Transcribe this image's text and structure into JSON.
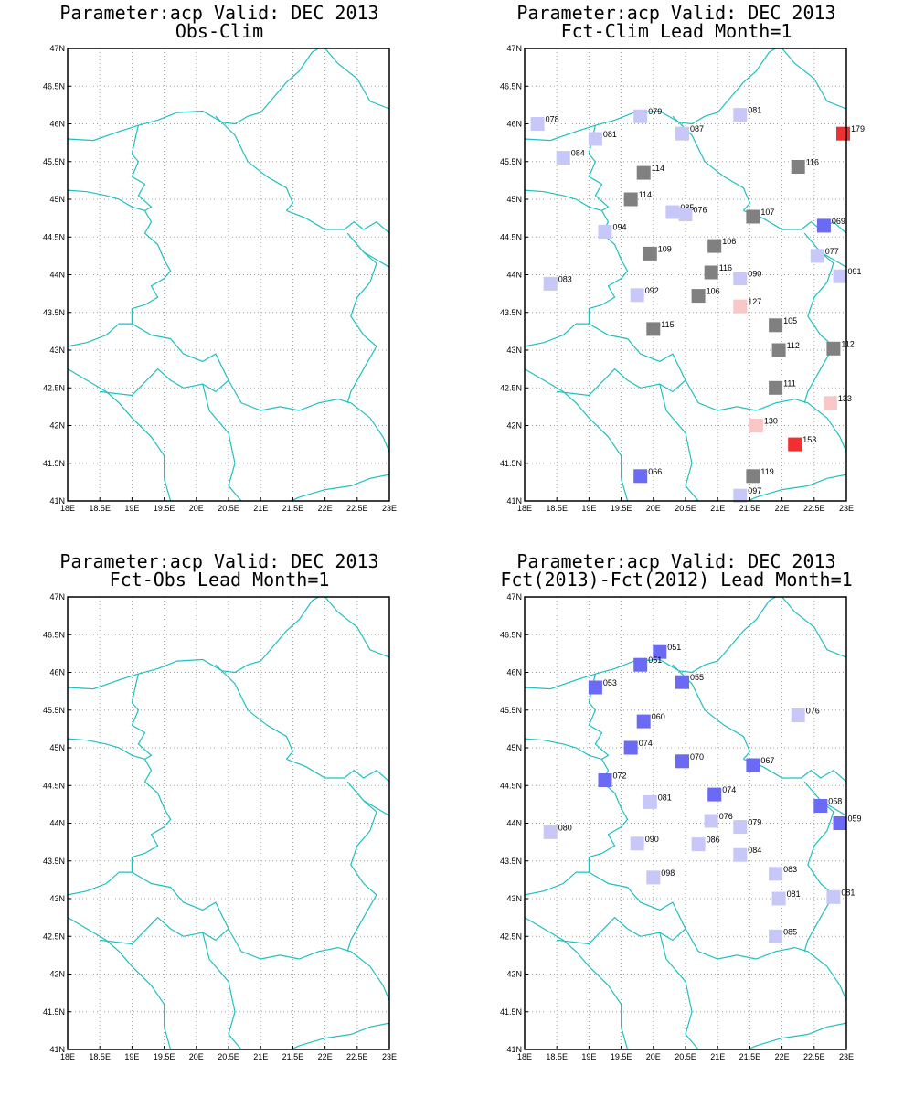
{
  "axes": {
    "x_ticks": [
      "18E",
      "18.5E",
      "19E",
      "19.5E",
      "20E",
      "20.5E",
      "21E",
      "21.5E",
      "22E",
      "22.5E",
      "23E"
    ],
    "y_ticks": [
      "41N",
      "41.5N",
      "42N",
      "42.5N",
      "43N",
      "43.5N",
      "44N",
      "44.5N",
      "45N",
      "45.5N",
      "46N",
      "46.5N",
      "47N"
    ],
    "xlim": [
      18,
      23
    ],
    "ylim": [
      41,
      47
    ],
    "grid": true
  },
  "colors": {
    "border": "#20c0c0",
    "grid": "#a0a0a0",
    "frame": "#000000",
    "classes": {
      "deep_blue": "#6a6af5",
      "light_blue": "#c8c8f8",
      "gray": "#808080",
      "pink": "#f8c8c8",
      "red": "#f03030"
    }
  },
  "panels": [
    {
      "title": "Parameter:acp Valid: DEC 2013",
      "subtitle": "Obs-Clim",
      "stations": []
    },
    {
      "title": "Parameter:acp Valid: DEC 2013",
      "subtitle": "Fct-Clim Lead Month=1",
      "stations": [
        {
          "lon": 18.2,
          "lat": 46.0,
          "label": "078",
          "cls": "light_blue"
        },
        {
          "lon": 19.8,
          "lat": 46.1,
          "label": "079",
          "cls": "light_blue"
        },
        {
          "lon": 21.35,
          "lat": 46.12,
          "label": "081",
          "cls": "light_blue"
        },
        {
          "lon": 19.1,
          "lat": 45.8,
          "label": "081",
          "cls": "light_blue"
        },
        {
          "lon": 20.45,
          "lat": 45.87,
          "label": "087",
          "cls": "light_blue"
        },
        {
          "lon": 22.95,
          "lat": 45.87,
          "label": "179",
          "cls": "red"
        },
        {
          "lon": 18.6,
          "lat": 45.55,
          "label": "084",
          "cls": "light_blue"
        },
        {
          "lon": 19.85,
          "lat": 45.35,
          "label": "114",
          "cls": "gray"
        },
        {
          "lon": 22.25,
          "lat": 45.43,
          "label": "116",
          "cls": "gray"
        },
        {
          "lon": 19.65,
          "lat": 45.0,
          "label": "114",
          "cls": "gray"
        },
        {
          "lon": 20.3,
          "lat": 44.83,
          "label": "085",
          "cls": "light_blue"
        },
        {
          "lon": 20.5,
          "lat": 44.8,
          "label": "076",
          "cls": "light_blue"
        },
        {
          "lon": 21.55,
          "lat": 44.77,
          "label": "107",
          "cls": "gray"
        },
        {
          "lon": 22.65,
          "lat": 44.65,
          "label": "069",
          "cls": "deep_blue"
        },
        {
          "lon": 19.25,
          "lat": 44.57,
          "label": "094",
          "cls": "light_blue"
        },
        {
          "lon": 20.95,
          "lat": 44.38,
          "label": "106",
          "cls": "gray"
        },
        {
          "lon": 19.95,
          "lat": 44.28,
          "label": "109",
          "cls": "gray"
        },
        {
          "lon": 22.55,
          "lat": 44.25,
          "label": "077",
          "cls": "light_blue"
        },
        {
          "lon": 20.9,
          "lat": 44.03,
          "label": "116",
          "cls": "gray"
        },
        {
          "lon": 21.35,
          "lat": 43.95,
          "label": "090",
          "cls": "light_blue"
        },
        {
          "lon": 22.9,
          "lat": 43.98,
          "label": "091",
          "cls": "light_blue"
        },
        {
          "lon": 18.4,
          "lat": 43.88,
          "label": "083",
          "cls": "light_blue"
        },
        {
          "lon": 19.75,
          "lat": 43.73,
          "label": "092",
          "cls": "light_blue"
        },
        {
          "lon": 20.7,
          "lat": 43.72,
          "label": "106",
          "cls": "gray"
        },
        {
          "lon": 21.35,
          "lat": 43.58,
          "label": "127",
          "cls": "pink"
        },
        {
          "lon": 21.9,
          "lat": 43.33,
          "label": "105",
          "cls": "gray"
        },
        {
          "lon": 20.0,
          "lat": 43.28,
          "label": "115",
          "cls": "gray"
        },
        {
          "lon": 21.95,
          "lat": 43.0,
          "label": "112",
          "cls": "gray"
        },
        {
          "lon": 22.8,
          "lat": 43.02,
          "label": "112",
          "cls": "gray"
        },
        {
          "lon": 21.9,
          "lat": 42.5,
          "label": "111",
          "cls": "gray"
        },
        {
          "lon": 22.75,
          "lat": 42.3,
          "label": "133",
          "cls": "pink"
        },
        {
          "lon": 21.6,
          "lat": 42.0,
          "label": "130",
          "cls": "pink"
        },
        {
          "lon": 22.2,
          "lat": 41.75,
          "label": "153",
          "cls": "red"
        },
        {
          "lon": 19.8,
          "lat": 41.33,
          "label": "066",
          "cls": "deep_blue"
        },
        {
          "lon": 21.55,
          "lat": 41.33,
          "label": "119",
          "cls": "gray"
        },
        {
          "lon": 21.35,
          "lat": 41.07,
          "label": "097",
          "cls": "light_blue"
        }
      ]
    },
    {
      "title": "Parameter:acp Valid: DEC 2013",
      "subtitle": "Fct-Obs Lead Month=1",
      "stations": []
    },
    {
      "title": "Parameter:acp Valid: DEC 2013",
      "subtitle": "Fct(2013)-Fct(2012) Lead Month=1",
      "stations": [
        {
          "lon": 20.1,
          "lat": 46.27,
          "label": "051",
          "cls": "deep_blue"
        },
        {
          "lon": 19.8,
          "lat": 46.1,
          "label": "051",
          "cls": "deep_blue"
        },
        {
          "lon": 19.1,
          "lat": 45.8,
          "label": "053",
          "cls": "deep_blue"
        },
        {
          "lon": 20.45,
          "lat": 45.87,
          "label": "055",
          "cls": "deep_blue"
        },
        {
          "lon": 22.25,
          "lat": 45.43,
          "label": "076",
          "cls": "light_blue"
        },
        {
          "lon": 19.85,
          "lat": 45.35,
          "label": "060",
          "cls": "deep_blue"
        },
        {
          "lon": 19.65,
          "lat": 45.0,
          "label": "074",
          "cls": "deep_blue"
        },
        {
          "lon": 20.45,
          "lat": 44.82,
          "label": "070",
          "cls": "deep_blue"
        },
        {
          "lon": 21.55,
          "lat": 44.77,
          "label": "067",
          "cls": "deep_blue"
        },
        {
          "lon": 19.25,
          "lat": 44.57,
          "label": "072",
          "cls": "deep_blue"
        },
        {
          "lon": 20.95,
          "lat": 44.38,
          "label": "074",
          "cls": "deep_blue"
        },
        {
          "lon": 19.95,
          "lat": 44.28,
          "label": "081",
          "cls": "light_blue"
        },
        {
          "lon": 22.6,
          "lat": 44.23,
          "label": "058",
          "cls": "deep_blue"
        },
        {
          "lon": 20.9,
          "lat": 44.03,
          "label": "076",
          "cls": "light_blue"
        },
        {
          "lon": 22.9,
          "lat": 44.0,
          "label": "059",
          "cls": "deep_blue"
        },
        {
          "lon": 21.35,
          "lat": 43.95,
          "label": "079",
          "cls": "light_blue"
        },
        {
          "lon": 18.4,
          "lat": 43.88,
          "label": "080",
          "cls": "light_blue"
        },
        {
          "lon": 19.75,
          "lat": 43.73,
          "label": "090",
          "cls": "light_blue"
        },
        {
          "lon": 20.7,
          "lat": 43.72,
          "label": "086",
          "cls": "light_blue"
        },
        {
          "lon": 21.35,
          "lat": 43.58,
          "label": "084",
          "cls": "light_blue"
        },
        {
          "lon": 21.9,
          "lat": 43.33,
          "label": "083",
          "cls": "light_blue"
        },
        {
          "lon": 20.0,
          "lat": 43.28,
          "label": "098",
          "cls": "light_blue"
        },
        {
          "lon": 21.95,
          "lat": 43.0,
          "label": "081",
          "cls": "light_blue"
        },
        {
          "lon": 22.8,
          "lat": 43.02,
          "label": "081",
          "cls": "light_blue"
        },
        {
          "lon": 21.9,
          "lat": 42.5,
          "label": "085",
          "cls": "light_blue"
        }
      ]
    }
  ]
}
